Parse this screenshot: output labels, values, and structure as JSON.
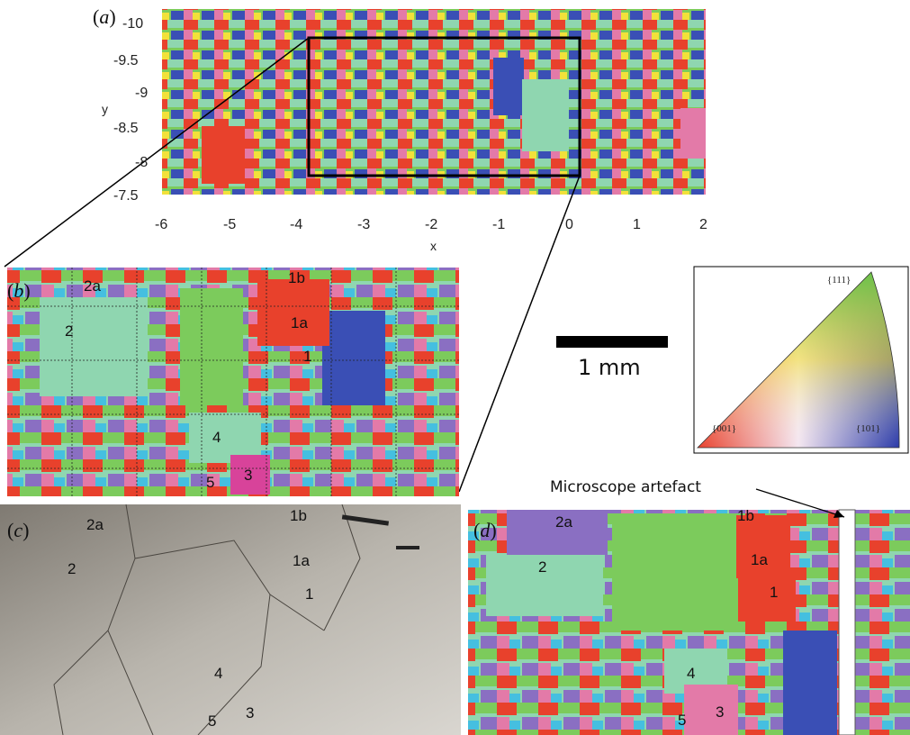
{
  "panels": {
    "a": {
      "label": "a",
      "xlabel": "x",
      "ylabel": "y",
      "xticks": [
        "-6",
        "-5",
        "-4",
        "-3",
        "-2",
        "-1",
        "0",
        "1",
        "2"
      ],
      "yticks": [
        "-10",
        "-9.5",
        "-9",
        "-8.5",
        "-8",
        "-7.5"
      ]
    },
    "b": {
      "label": "b",
      "grains": [
        "2a",
        "2",
        "1b",
        "1a",
        "1",
        "4",
        "5",
        "3"
      ]
    },
    "c": {
      "label": "c",
      "grains": [
        "2a",
        "2",
        "1b",
        "1a",
        "1",
        "4",
        "5",
        "3"
      ]
    },
    "d": {
      "label": "d",
      "grains": [
        "2a",
        "2",
        "1b",
        "1a",
        "1",
        "4",
        "5",
        "3"
      ],
      "artefact_label": "Microscope artefact"
    }
  },
  "scale_bar": {
    "label": "1 mm"
  },
  "color_key": {
    "corners": [
      "{111}",
      "{001}",
      "{101}"
    ]
  },
  "colors": {
    "red": "#e8412c",
    "green": "#7ccb5c",
    "mint": "#8fd6b0",
    "pink": "#e37aa8",
    "blue": "#3a4fb5",
    "purple": "#8a6fc2",
    "orange": "#f1a33a",
    "yellow": "#f2e13a",
    "cyan": "#45bfe0",
    "lavender": "#b9a8e0",
    "magenta": "#d8439a",
    "olive": "#a7c840"
  }
}
